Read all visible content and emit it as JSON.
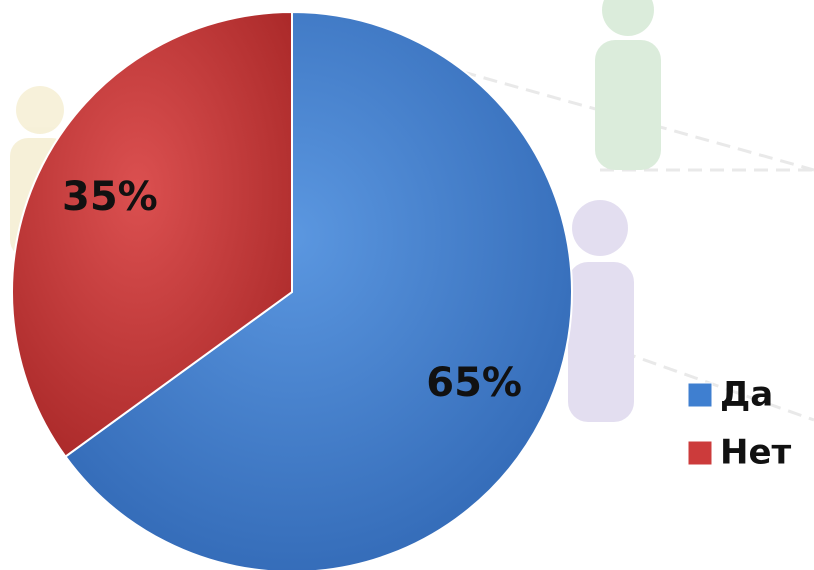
{
  "chart_data": {
    "type": "pie",
    "categories": [
      "Да",
      "Нет"
    ],
    "values": [
      65,
      35
    ],
    "value_labels": [
      "65%",
      "35%"
    ],
    "colors": [
      "#3f7fd0",
      "#cc3b3b"
    ],
    "legend": "right"
  }
}
